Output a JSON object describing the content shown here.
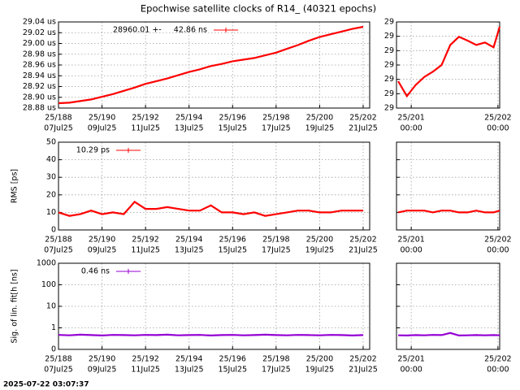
{
  "title": "Epochwise satellite clocks of R14_ (40321 epochs)",
  "timestamp": "2025-07-22 03:07:37",
  "chart_data": [
    {
      "type": "line",
      "xlim": [
        188,
        202.3
      ],
      "ylim": [
        28.88,
        29.04
      ],
      "xticks": [
        {
          "value": 188,
          "label": "25/188"
        },
        {
          "value": 190,
          "label": "25/190"
        },
        {
          "value": 192,
          "label": "25/192"
        },
        {
          "value": 194,
          "label": "25/194"
        },
        {
          "value": 196,
          "label": "25/196"
        },
        {
          "value": 198,
          "label": "25/198"
        },
        {
          "value": 200,
          "label": "25/200"
        },
        {
          "value": 202,
          "label": "25/202"
        }
      ],
      "xtick_dates": [
        "07Jul25",
        "09Jul25",
        "11Jul25",
        "13Jul25",
        "15Jul25",
        "17Jul25",
        "19Jul25",
        "21Jul25"
      ],
      "yticks": [
        {
          "value": 28.88,
          "label": "28.88 us"
        },
        {
          "value": 28.9,
          "label": "28.90 us"
        },
        {
          "value": 28.92,
          "label": "28.92 us"
        },
        {
          "value": 28.94,
          "label": "28.94 us"
        },
        {
          "value": 28.96,
          "label": "28.96 us"
        },
        {
          "value": 28.98,
          "label": "28.98 us"
        },
        {
          "value": 29.0,
          "label": "29.00 us"
        },
        {
          "value": 29.02,
          "label": "29.02 us"
        },
        {
          "value": 29.04,
          "label": "29.04 us"
        }
      ],
      "show_ytick_labels": true,
      "grid": true,
      "x": [
        188,
        188.5,
        189,
        189.5,
        190,
        190.5,
        191,
        191.5,
        192,
        192.5,
        193,
        193.5,
        194,
        194.5,
        195,
        195.5,
        196,
        196.5,
        197,
        197.5,
        198,
        198.5,
        199,
        199.5,
        200,
        200.5,
        201,
        201.5,
        202
      ],
      "series": [
        {
          "name": "28960.01 +-     42.86 ns",
          "color": "#ff0000",
          "values": [
            28.889,
            28.89,
            28.893,
            28.896,
            28.901,
            28.906,
            28.912,
            28.918,
            28.925,
            28.93,
            28.935,
            28.941,
            28.947,
            28.952,
            28.958,
            28.962,
            28.967,
            28.97,
            28.973,
            28.978,
            28.983,
            28.99,
            28.997,
            29.005,
            29.012,
            29.017,
            29.022,
            29.027,
            29.031
          ]
        }
      ]
    },
    {
      "type": "line",
      "xlim": [
        200.83,
        202.02
      ],
      "ylim": [
        29.018,
        29.036
      ],
      "xticks": [
        {
          "value": 201,
          "label": "25/201"
        },
        {
          "value": 202,
          "label": "25/202"
        }
      ],
      "xtick_dates": [
        "00:00",
        "00:00"
      ],
      "yticks": [
        {
          "value": 29.018,
          "label": "29"
        },
        {
          "value": 29.021,
          "label": "29"
        },
        {
          "value": 29.024,
          "label": "29"
        },
        {
          "value": 29.027,
          "label": "29"
        },
        {
          "value": 29.03,
          "label": "29"
        },
        {
          "value": 29.033,
          "label": "29"
        },
        {
          "value": 29.036,
          "label": "29"
        }
      ],
      "show_ytick_labels": true,
      "grid": true,
      "x": [
        200.85,
        200.95,
        201.05,
        201.15,
        201.25,
        201.35,
        201.45,
        201.55,
        201.65,
        201.75,
        201.85,
        201.95,
        202.02
      ],
      "series": [
        {
          "color": "#ff0000",
          "values": [
            29.0236,
            29.0205,
            29.0228,
            29.0245,
            29.0256,
            29.027,
            29.0312,
            29.0329,
            29.0321,
            29.0312,
            29.0317,
            29.0307,
            29.035
          ]
        }
      ]
    },
    {
      "type": "line",
      "ylabel": "RMS [ps]",
      "xlim": [
        188,
        202.3
      ],
      "ylim": [
        0,
        50
      ],
      "xticks": [
        {
          "value": 188,
          "label": "25/188"
        },
        {
          "value": 190,
          "label": "25/190"
        },
        {
          "value": 192,
          "label": "25/192"
        },
        {
          "value": 194,
          "label": "25/194"
        },
        {
          "value": 196,
          "label": "25/196"
        },
        {
          "value": 198,
          "label": "25/198"
        },
        {
          "value": 200,
          "label": "25/200"
        },
        {
          "value": 202,
          "label": "25/202"
        }
      ],
      "xtick_dates": [
        "07Jul25",
        "09Jul25",
        "11Jul25",
        "13Jul25",
        "15Jul25",
        "17Jul25",
        "19Jul25",
        "21Jul25"
      ],
      "yticks": [
        0,
        10,
        20,
        30,
        40,
        50
      ],
      "show_ytick_labels": true,
      "grid": true,
      "x": [
        188,
        188.5,
        189,
        189.5,
        190,
        190.5,
        191,
        191.5,
        192,
        192.5,
        193,
        193.5,
        194,
        194.5,
        195,
        195.5,
        196,
        196.5,
        197,
        197.5,
        198,
        198.5,
        199,
        199.5,
        200,
        200.5,
        201,
        201.5,
        202
      ],
      "series": [
        {
          "name": "10.29 ps",
          "color": "#ff0000",
          "values": [
            10,
            8,
            9,
            11,
            9,
            10,
            9,
            16,
            12,
            12,
            13,
            12,
            11,
            11,
            14,
            10,
            10,
            9,
            10,
            8,
            9,
            10,
            11,
            11,
            10,
            10,
            11,
            11,
            11
          ]
        }
      ]
    },
    {
      "type": "line",
      "xlim": [
        200.83,
        202.02
      ],
      "ylim": [
        0,
        50
      ],
      "xticks": [
        {
          "value": 201,
          "label": "25/201"
        },
        {
          "value": 202,
          "label": "25/202"
        }
      ],
      "xtick_dates": [
        "00:00",
        "00:00"
      ],
      "yticks": [
        0,
        10,
        20,
        30,
        40,
        50
      ],
      "show_ytick_labels": false,
      "grid": true,
      "x": [
        200.85,
        200.95,
        201.05,
        201.15,
        201.25,
        201.35,
        201.45,
        201.55,
        201.65,
        201.75,
        201.85,
        201.95,
        202.02
      ],
      "series": [
        {
          "color": "#ff0000",
          "values": [
            10,
            11,
            11,
            11,
            10,
            11,
            11,
            10,
            10,
            11,
            10,
            10,
            11
          ]
        }
      ]
    },
    {
      "type": "line",
      "ylabel": "Sig. of lin. fit[h [ns]",
      "log_y": true,
      "xlim": [
        188,
        202.3
      ],
      "ylim": [
        0.1,
        1000
      ],
      "xticks": [
        {
          "value": 188,
          "label": "25/188"
        },
        {
          "value": 190,
          "label": "25/190"
        },
        {
          "value": 192,
          "label": "25/192"
        },
        {
          "value": 194,
          "label": "25/194"
        },
        {
          "value": 196,
          "label": "25/196"
        },
        {
          "value": 198,
          "label": "25/198"
        },
        {
          "value": 200,
          "label": "25/200"
        },
        {
          "value": 202,
          "label": "25/202"
        }
      ],
      "xtick_dates": [
        "07Jul25",
        "09Jul25",
        "11Jul25",
        "13Jul25",
        "15Jul25",
        "17Jul25",
        "19Jul25",
        "21Jul25"
      ],
      "yticks": [
        {
          "value": 0.1,
          "label": "0"
        },
        1,
        10,
        100,
        1000
      ],
      "show_ytick_labels": true,
      "grid": true,
      "x": [
        188,
        188.5,
        189,
        189.5,
        190,
        190.5,
        191,
        191.5,
        192,
        192.5,
        193,
        193.5,
        194,
        194.5,
        195,
        195.5,
        196,
        196.5,
        197,
        197.5,
        198,
        198.5,
        199,
        199.5,
        200,
        200.5,
        201,
        201.5,
        202
      ],
      "series": [
        {
          "name": "0.46 ns",
          "color": "#9400d3",
          "values": [
            0.47,
            0.45,
            0.48,
            0.46,
            0.44,
            0.47,
            0.46,
            0.45,
            0.47,
            0.46,
            0.48,
            0.45,
            0.46,
            0.47,
            0.44,
            0.46,
            0.47,
            0.45,
            0.46,
            0.48,
            0.46,
            0.45,
            0.47,
            0.46,
            0.45,
            0.47,
            0.46,
            0.44,
            0.46
          ]
        }
      ]
    },
    {
      "type": "line",
      "log_y": true,
      "xlim": [
        200.83,
        202.02
      ],
      "ylim": [
        0.1,
        1000
      ],
      "xticks": [
        {
          "value": 201,
          "label": "25/201"
        },
        {
          "value": 202,
          "label": "25/202"
        }
      ],
      "xtick_dates": [
        "00:00",
        "00:00"
      ],
      "yticks": [
        {
          "value": 0.1,
          "label": "0"
        },
        1,
        10,
        100,
        1000
      ],
      "show_ytick_labels": false,
      "grid": true,
      "x": [
        200.85,
        200.95,
        201.05,
        201.15,
        201.25,
        201.35,
        201.45,
        201.55,
        201.65,
        201.75,
        201.85,
        201.95,
        202.02
      ],
      "series": [
        {
          "color": "#9400d3",
          "values": [
            0.45,
            0.44,
            0.46,
            0.45,
            0.47,
            0.46,
            0.58,
            0.44,
            0.45,
            0.46,
            0.45,
            0.46,
            0.45
          ]
        }
      ]
    }
  ]
}
